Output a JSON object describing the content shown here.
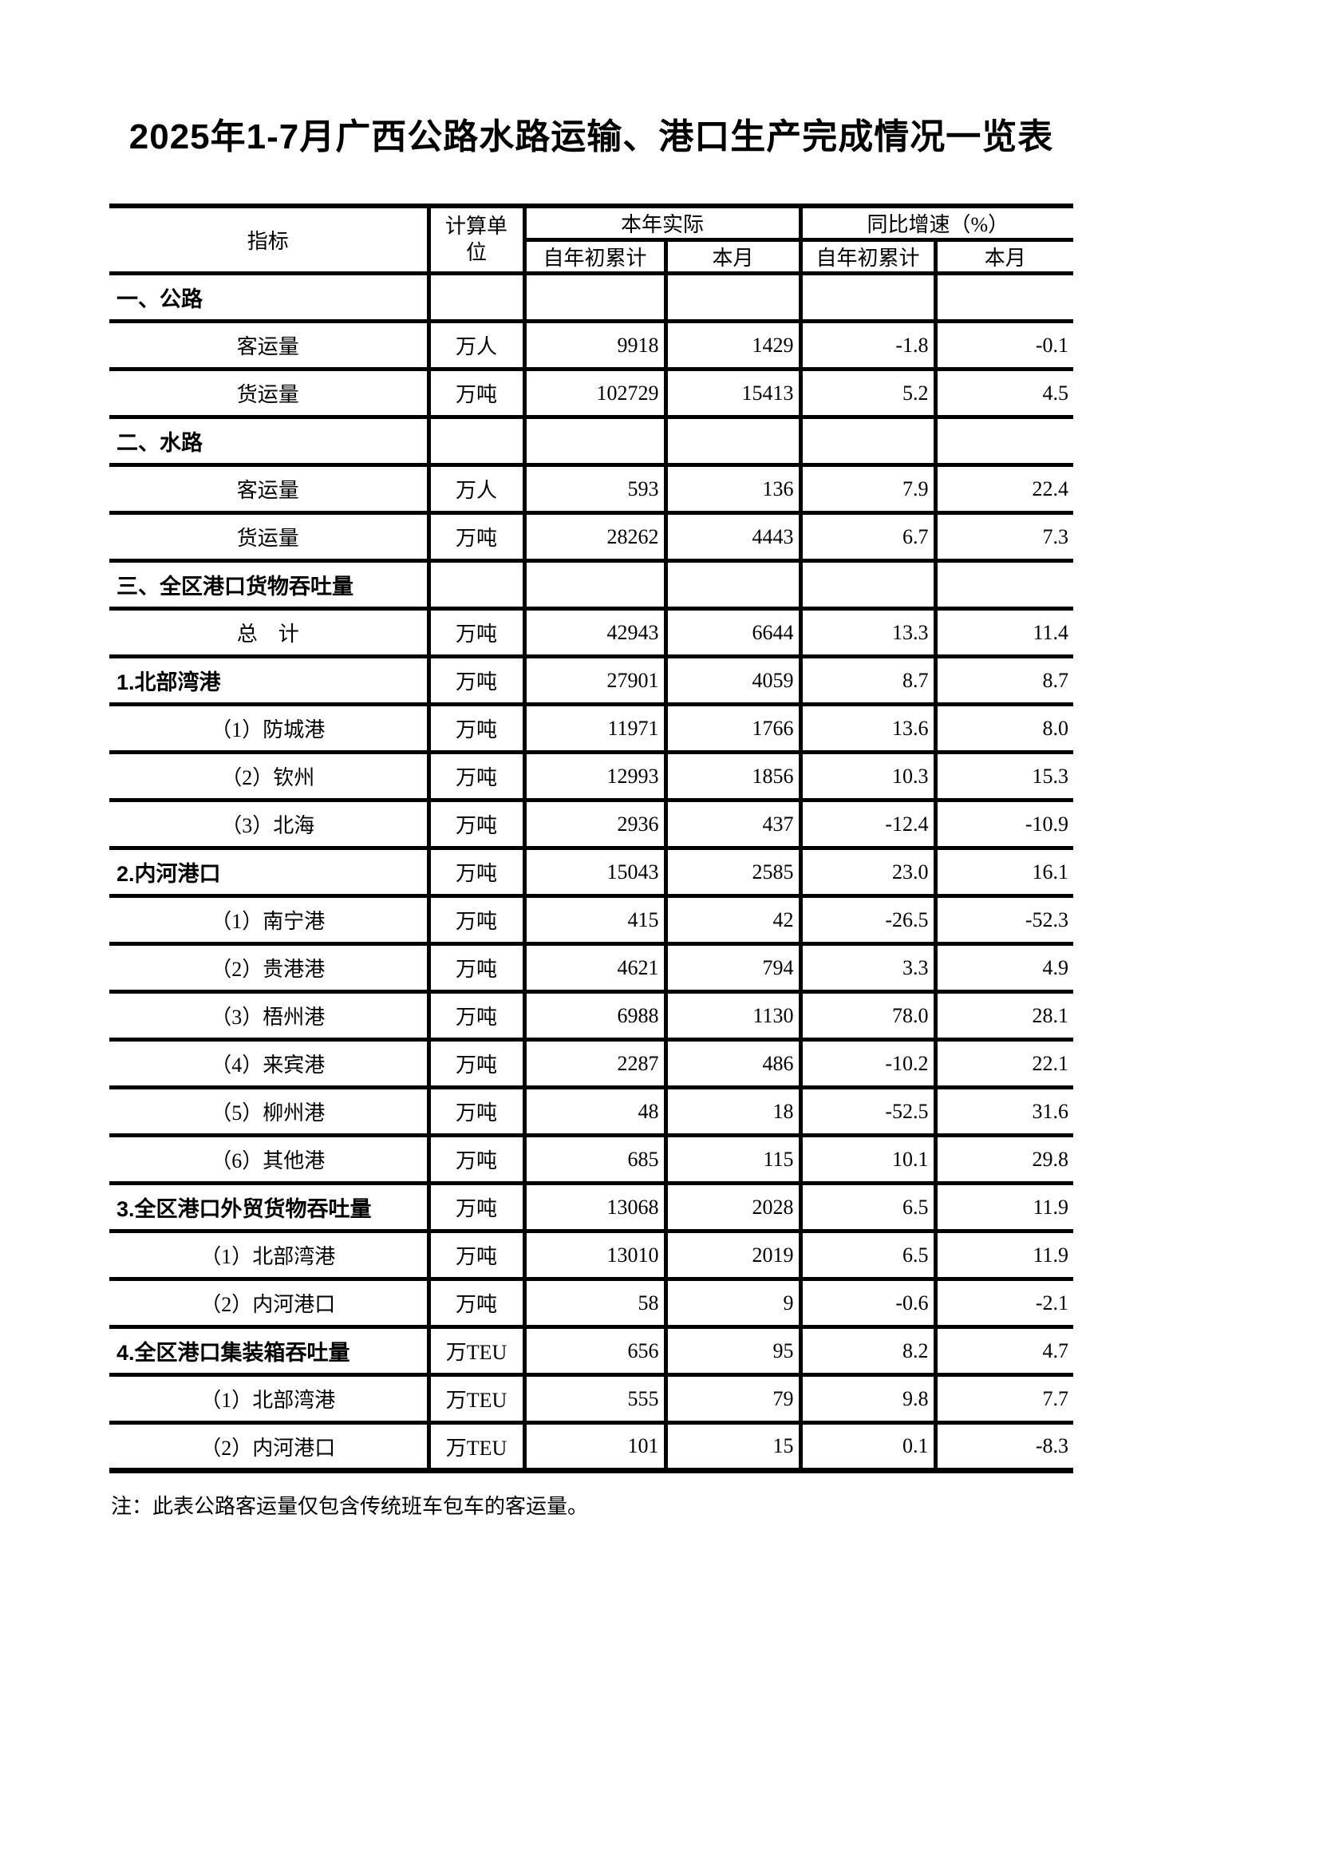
{
  "page": {
    "title": "2025年1-7月广西公路水路运输、港口生产完成情况一览表",
    "note": "注：此表公路客运量仅包含传统班车包车的客运量。",
    "colors": {
      "background": "#ffffff",
      "text": "#000000",
      "table_border": "#000000"
    }
  },
  "table": {
    "header": {
      "indicator": "指标",
      "unit_line1": "计算单",
      "unit_line2": "位",
      "group_actual": "本年实际",
      "group_yoy": "同比增速（%）",
      "sub_ytd": "自年初累计",
      "sub_month": "本月",
      "sub_ytd2": "自年初累计",
      "sub_month2": "本月"
    },
    "rows": [
      {
        "type": "section",
        "label": "一、公路",
        "unit": "",
        "ytd_actual": "",
        "month_actual": "",
        "ytd_growth": "",
        "month_growth": ""
      },
      {
        "type": "item",
        "label": "客运量",
        "unit": "万人",
        "ytd_actual": "9918",
        "month_actual": "1429",
        "ytd_growth": "-1.8",
        "month_growth": "-0.1"
      },
      {
        "type": "item",
        "label": "货运量",
        "unit": "万吨",
        "ytd_actual": "102729",
        "month_actual": "15413",
        "ytd_growth": "5.2",
        "month_growth": "4.5"
      },
      {
        "type": "section",
        "label": "二、水路",
        "unit": "",
        "ytd_actual": "",
        "month_actual": "",
        "ytd_growth": "",
        "month_growth": ""
      },
      {
        "type": "item",
        "label": "客运量",
        "unit": "万人",
        "ytd_actual": "593",
        "month_actual": "136",
        "ytd_growth": "7.9",
        "month_growth": "22.4"
      },
      {
        "type": "item",
        "label": "货运量",
        "unit": "万吨",
        "ytd_actual": "28262",
        "month_actual": "4443",
        "ytd_growth": "6.7",
        "month_growth": "7.3"
      },
      {
        "type": "section",
        "label": "三、全区港口货物吞吐量",
        "unit": "",
        "ytd_actual": "",
        "month_actual": "",
        "ytd_growth": "",
        "month_growth": ""
      },
      {
        "type": "item",
        "label": "总　计",
        "unit": "万吨",
        "ytd_actual": "42943",
        "month_actual": "6644",
        "ytd_growth": "13.3",
        "month_growth": "11.4"
      },
      {
        "type": "group",
        "label": "1.北部湾港",
        "unit": "万吨",
        "ytd_actual": "27901",
        "month_actual": "4059",
        "ytd_growth": "8.7",
        "month_growth": "8.7"
      },
      {
        "type": "sub",
        "label": "（1）防城港",
        "unit": "万吨",
        "ytd_actual": "11971",
        "month_actual": "1766",
        "ytd_growth": "13.6",
        "month_growth": "8.0"
      },
      {
        "type": "sub",
        "label": "（2）钦州",
        "unit": "万吨",
        "ytd_actual": "12993",
        "month_actual": "1856",
        "ytd_growth": "10.3",
        "month_growth": "15.3"
      },
      {
        "type": "sub",
        "label": "（3）北海",
        "unit": "万吨",
        "ytd_actual": "2936",
        "month_actual": "437",
        "ytd_growth": "-12.4",
        "month_growth": "-10.9"
      },
      {
        "type": "group",
        "label": "2.内河港口",
        "unit": "万吨",
        "ytd_actual": "15043",
        "month_actual": "2585",
        "ytd_growth": "23.0",
        "month_growth": "16.1"
      },
      {
        "type": "sub",
        "label": "（1）南宁港",
        "unit": "万吨",
        "ytd_actual": "415",
        "month_actual": "42",
        "ytd_growth": "-26.5",
        "month_growth": "-52.3"
      },
      {
        "type": "sub",
        "label": "（2）贵港港",
        "unit": "万吨",
        "ytd_actual": "4621",
        "month_actual": "794",
        "ytd_growth": "3.3",
        "month_growth": "4.9"
      },
      {
        "type": "sub",
        "label": "（3）梧州港",
        "unit": "万吨",
        "ytd_actual": "6988",
        "month_actual": "1130",
        "ytd_growth": "78.0",
        "month_growth": "28.1"
      },
      {
        "type": "sub",
        "label": "（4）来宾港",
        "unit": "万吨",
        "ytd_actual": "2287",
        "month_actual": "486",
        "ytd_growth": "-10.2",
        "month_growth": "22.1"
      },
      {
        "type": "sub",
        "label": "（5）柳州港",
        "unit": "万吨",
        "ytd_actual": "48",
        "month_actual": "18",
        "ytd_growth": "-52.5",
        "month_growth": "31.6"
      },
      {
        "type": "sub",
        "label": "（6）其他港",
        "unit": "万吨",
        "ytd_actual": "685",
        "month_actual": "115",
        "ytd_growth": "10.1",
        "month_growth": "29.8"
      },
      {
        "type": "group",
        "label": "3.全区港口外贸货物吞吐量",
        "unit": "万吨",
        "ytd_actual": "13068",
        "month_actual": "2028",
        "ytd_growth": "6.5",
        "month_growth": "11.9"
      },
      {
        "type": "sub",
        "label": "（1）北部湾港",
        "unit": "万吨",
        "ytd_actual": "13010",
        "month_actual": "2019",
        "ytd_growth": "6.5",
        "month_growth": "11.9"
      },
      {
        "type": "sub",
        "label": "（2）内河港口",
        "unit": "万吨",
        "ytd_actual": "58",
        "month_actual": "9",
        "ytd_growth": "-0.6",
        "month_growth": "-2.1"
      },
      {
        "type": "group",
        "label": "4.全区港口集装箱吞吐量",
        "unit": "万TEU",
        "ytd_actual": "656",
        "month_actual": "95",
        "ytd_growth": "8.2",
        "month_growth": "4.7"
      },
      {
        "type": "sub",
        "label": "（1）北部湾港",
        "unit": "万TEU",
        "ytd_actual": "555",
        "month_actual": "79",
        "ytd_growth": "9.8",
        "month_growth": "7.7"
      },
      {
        "type": "sub",
        "label": "（2）内河港口",
        "unit": "万TEU",
        "ytd_actual": "101",
        "month_actual": "15",
        "ytd_growth": "0.1",
        "month_growth": "-8.3"
      }
    ]
  }
}
